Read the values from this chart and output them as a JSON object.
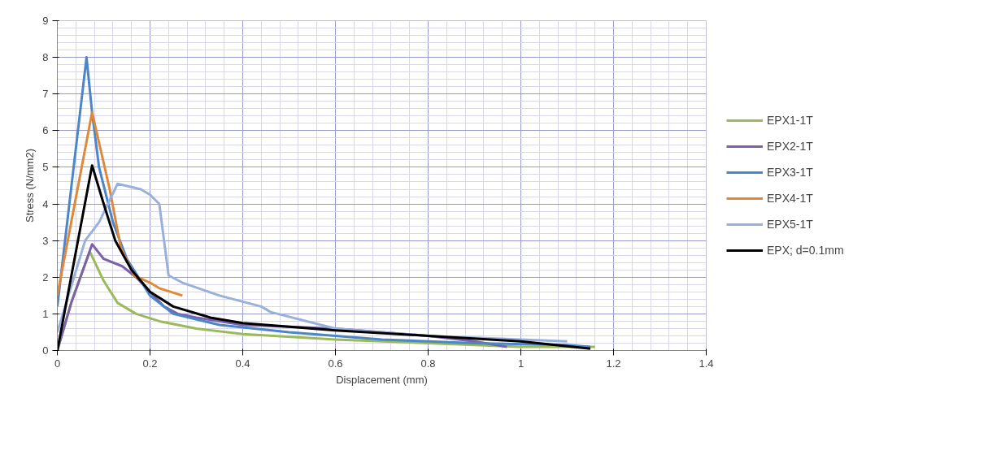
{
  "chart_data": {
    "type": "line",
    "xlabel": "Displacement (mm)",
    "ylabel": "Stress (N/mm2)",
    "xlim": [
      0,
      1.4
    ],
    "xticks": [
      0,
      0.2,
      0.4,
      0.6,
      0.8,
      1,
      1.2,
      1.4
    ],
    "ylim": [
      0,
      9
    ],
    "yticks": [
      0,
      1,
      2,
      3,
      4,
      5,
      6,
      7,
      8,
      9
    ],
    "grid": true,
    "legend": "right",
    "line_style": "solid",
    "marker": "none",
    "series": [
      {
        "name": "EPX1-1T",
        "color": "#9bbb59",
        "x": [
          0,
          0.03,
          0.07,
          0.1,
          0.13,
          0.17,
          0.22,
          0.3,
          0.4,
          0.6,
          0.8,
          1.0,
          1.16
        ],
        "values": [
          0,
          1.3,
          2.7,
          1.9,
          1.3,
          1.0,
          0.8,
          0.6,
          0.45,
          0.3,
          0.2,
          0.1,
          0.1
        ]
      },
      {
        "name": "EPX2-1T",
        "color": "#7c61a8",
        "x": [
          0,
          0.03,
          0.075,
          0.1,
          0.14,
          0.17,
          0.2,
          0.23,
          0.26,
          0.3,
          0.4,
          0.6,
          0.7,
          0.8,
          0.9,
          0.97
        ],
        "values": [
          0,
          1.3,
          2.9,
          2.5,
          2.3,
          2.0,
          1.6,
          1.2,
          1.0,
          0.9,
          0.7,
          0.6,
          0.5,
          0.4,
          0.25,
          0.1
        ]
      },
      {
        "name": "EPX3-1T",
        "color": "#4a86c8",
        "x": [
          0,
          0.063,
          0.075,
          0.09,
          0.12,
          0.15,
          0.2,
          0.25,
          0.35,
          0.5,
          0.7,
          0.9,
          1.1,
          1.15
        ],
        "values": [
          1.2,
          8.0,
          6.5,
          5.0,
          3.5,
          2.5,
          1.5,
          1.0,
          0.7,
          0.5,
          0.3,
          0.2,
          0.15,
          0.1
        ]
      },
      {
        "name": "EPX4-1T",
        "color": "#e0883a",
        "x": [
          0,
          0.075,
          0.113,
          0.137,
          0.166,
          0.2,
          0.22,
          0.27
        ],
        "values": [
          1.5,
          6.5,
          4.4,
          2.8,
          2.05,
          1.85,
          1.7,
          1.5
        ]
      },
      {
        "name": "EPX5-1T",
        "color": "#98b0dc",
        "x": [
          0,
          0.06,
          0.09,
          0.13,
          0.18,
          0.2,
          0.22,
          0.24,
          0.27,
          0.35,
          0.44,
          0.46,
          0.6,
          0.8,
          1.0,
          1.1
        ],
        "values": [
          0.5,
          3.0,
          3.5,
          4.55,
          4.4,
          4.25,
          4.0,
          2.05,
          1.85,
          1.5,
          1.2,
          1.05,
          0.6,
          0.4,
          0.3,
          0.25
        ]
      },
      {
        "name": "EPX; d=0.1mm",
        "color": "#000000",
        "x": [
          0,
          0.075,
          0.1,
          0.125,
          0.16,
          0.2,
          0.25,
          0.33,
          0.4,
          0.6,
          0.8,
          1.0,
          1.15
        ],
        "values": [
          0,
          5.05,
          4.0,
          3.0,
          2.2,
          1.6,
          1.2,
          0.9,
          0.75,
          0.55,
          0.4,
          0.25,
          0.05
        ]
      }
    ]
  }
}
